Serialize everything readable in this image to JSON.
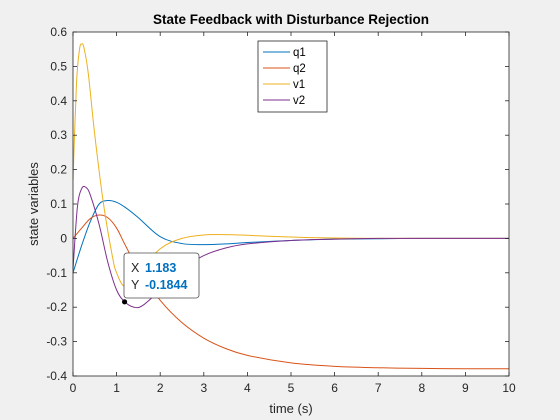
{
  "colors": {
    "figure_bg": "#f0f0f0",
    "axes_bg": "#ffffff",
    "axes_edge": "#262626",
    "tick_text": "#262626",
    "datatip_value": "#0070c0",
    "datatip_border": "#4d4d4d"
  },
  "chart_data": {
    "type": "line",
    "title": "State Feedback with Disturbance Rejection",
    "xlabel": "time (s)",
    "ylabel": "state variables",
    "xlim": [
      0,
      10
    ],
    "ylim": [
      -0.4,
      0.6
    ],
    "grid": false,
    "legend_position": "top-center",
    "xticks": [
      "0",
      "1",
      "2",
      "3",
      "4",
      "5",
      "6",
      "7",
      "8",
      "9",
      "10"
    ],
    "yticks": [
      "-0.4",
      "-0.3",
      "-0.2",
      "-0.1",
      "0",
      "0.1",
      "0.2",
      "0.3",
      "0.4",
      "0.5",
      "0.6"
    ],
    "series": [
      {
        "name": "q1",
        "color": "#0072bd",
        "x": [
          0,
          0.2,
          0.4,
          0.6,
          0.8,
          1.0,
          1.2,
          1.5,
          2.0,
          2.5,
          3.0,
          3.5,
          4.0,
          5.0,
          6.0,
          7.0,
          8.0,
          9.0,
          10.0
        ],
        "y": [
          -0.1,
          -0.02,
          0.05,
          0.1,
          0.11,
          0.105,
          0.09,
          0.06,
          0.005,
          -0.015,
          -0.018,
          -0.016,
          -0.012,
          -0.006,
          -0.002,
          -0.001,
          0.0,
          0.0,
          0.0
        ]
      },
      {
        "name": "q2",
        "color": "#d95319",
        "x": [
          0,
          0.2,
          0.4,
          0.6,
          0.8,
          1.0,
          1.2,
          1.5,
          2.0,
          2.5,
          3.0,
          3.5,
          4.0,
          5.0,
          6.0,
          7.0,
          8.0,
          9.0,
          10.0
        ],
        "y": [
          0.0,
          0.03,
          0.058,
          0.068,
          0.06,
          0.03,
          -0.02,
          -0.09,
          -0.18,
          -0.245,
          -0.29,
          -0.32,
          -0.34,
          -0.362,
          -0.372,
          -0.376,
          -0.378,
          -0.379,
          -0.379
        ]
      },
      {
        "name": "v1",
        "color": "#edb120",
        "x": [
          0,
          0.08,
          0.15,
          0.2,
          0.25,
          0.35,
          0.5,
          0.7,
          0.9,
          1.0,
          1.2,
          1.5,
          2.0,
          2.5,
          3.0,
          3.5,
          4.0,
          5.0,
          6.0,
          7.0,
          8.0,
          10.0
        ],
        "y": [
          0.17,
          0.45,
          0.55,
          0.565,
          0.555,
          0.48,
          0.3,
          0.1,
          -0.05,
          -0.1,
          -0.14,
          -0.1,
          -0.03,
          0.0,
          0.01,
          0.011,
          0.009,
          0.004,
          0.001,
          0.0,
          0.0,
          0.0
        ]
      },
      {
        "name": "v2",
        "color": "#7e2f8e",
        "x": [
          0,
          0.1,
          0.2,
          0.3,
          0.4,
          0.6,
          0.8,
          1.0,
          1.183,
          1.4,
          1.6,
          2.0,
          2.5,
          3.0,
          3.5,
          4.0,
          5.0,
          6.0,
          7.0,
          8.0,
          10.0
        ],
        "y": [
          -0.09,
          0.09,
          0.145,
          0.148,
          0.125,
          0.04,
          -0.07,
          -0.15,
          -0.184,
          -0.2,
          -0.195,
          -0.15,
          -0.09,
          -0.05,
          -0.028,
          -0.016,
          -0.006,
          -0.002,
          0.0,
          0.0,
          0.0
        ]
      }
    ],
    "datatip": {
      "x_label": "X",
      "x_value": "1.183",
      "y_label": "Y",
      "y_value": "-0.1844",
      "point": [
        1.183,
        -0.1844
      ]
    }
  }
}
